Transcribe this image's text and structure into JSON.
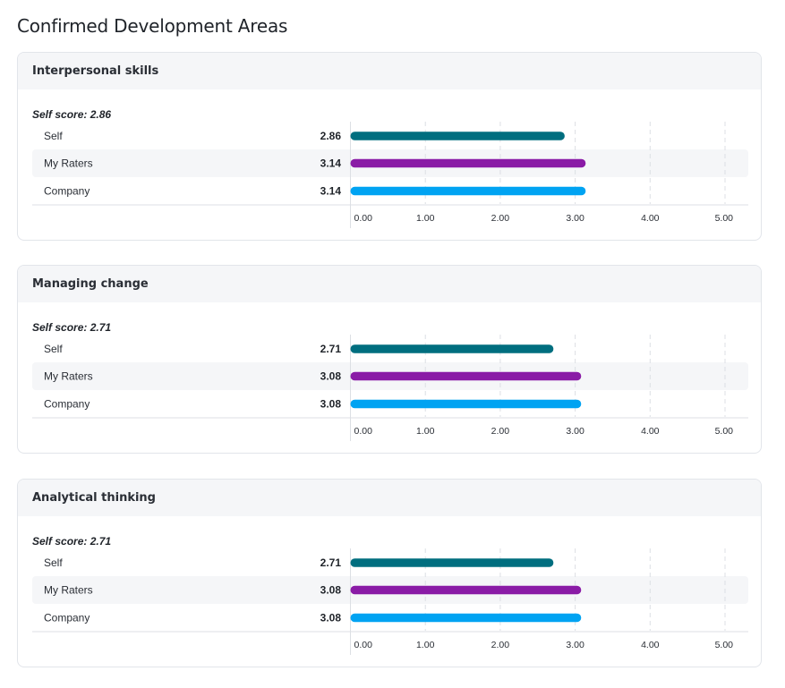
{
  "page": {
    "title": "Confirmed Development Areas"
  },
  "colors": {
    "self": "#006e7f",
    "raters": "#8a1ba6",
    "company": "#00a3f2",
    "stripe": "#f5f6f8",
    "grid": "#dcdfe4"
  },
  "chart_data": [
    {
      "type": "bar",
      "title": "Interpersonal skills",
      "self_score_label": "Self score: 2.86",
      "categories": [
        "Self",
        "My Raters",
        "Company"
      ],
      "values": [
        2.86,
        3.14,
        3.14
      ],
      "value_labels": [
        "2.86",
        "3.14",
        "3.14"
      ],
      "xlim": [
        0,
        5
      ],
      "ticks": [
        0,
        1,
        2,
        3,
        4,
        5
      ],
      "tick_labels": [
        "0.00",
        "1.00",
        "2.00",
        "3.00",
        "4.00",
        "5.00"
      ],
      "orientation": "horizontal",
      "grid": true
    },
    {
      "type": "bar",
      "title": "Managing change",
      "self_score_label": "Self score: 2.71",
      "categories": [
        "Self",
        "My Raters",
        "Company"
      ],
      "values": [
        2.71,
        3.08,
        3.08
      ],
      "value_labels": [
        "2.71",
        "3.08",
        "3.08"
      ],
      "xlim": [
        0,
        5
      ],
      "ticks": [
        0,
        1,
        2,
        3,
        4,
        5
      ],
      "tick_labels": [
        "0.00",
        "1.00",
        "2.00",
        "3.00",
        "4.00",
        "5.00"
      ],
      "orientation": "horizontal",
      "grid": true
    },
    {
      "type": "bar",
      "title": "Analytical thinking",
      "self_score_label": "Self score: 2.71",
      "categories": [
        "Self",
        "My Raters",
        "Company"
      ],
      "values": [
        2.71,
        3.08,
        3.08
      ],
      "value_labels": [
        "2.71",
        "3.08",
        "3.08"
      ],
      "xlim": [
        0,
        5
      ],
      "ticks": [
        0,
        1,
        2,
        3,
        4,
        5
      ],
      "tick_labels": [
        "0.00",
        "1.00",
        "2.00",
        "3.00",
        "4.00",
        "5.00"
      ],
      "orientation": "horizontal",
      "grid": true
    }
  ]
}
